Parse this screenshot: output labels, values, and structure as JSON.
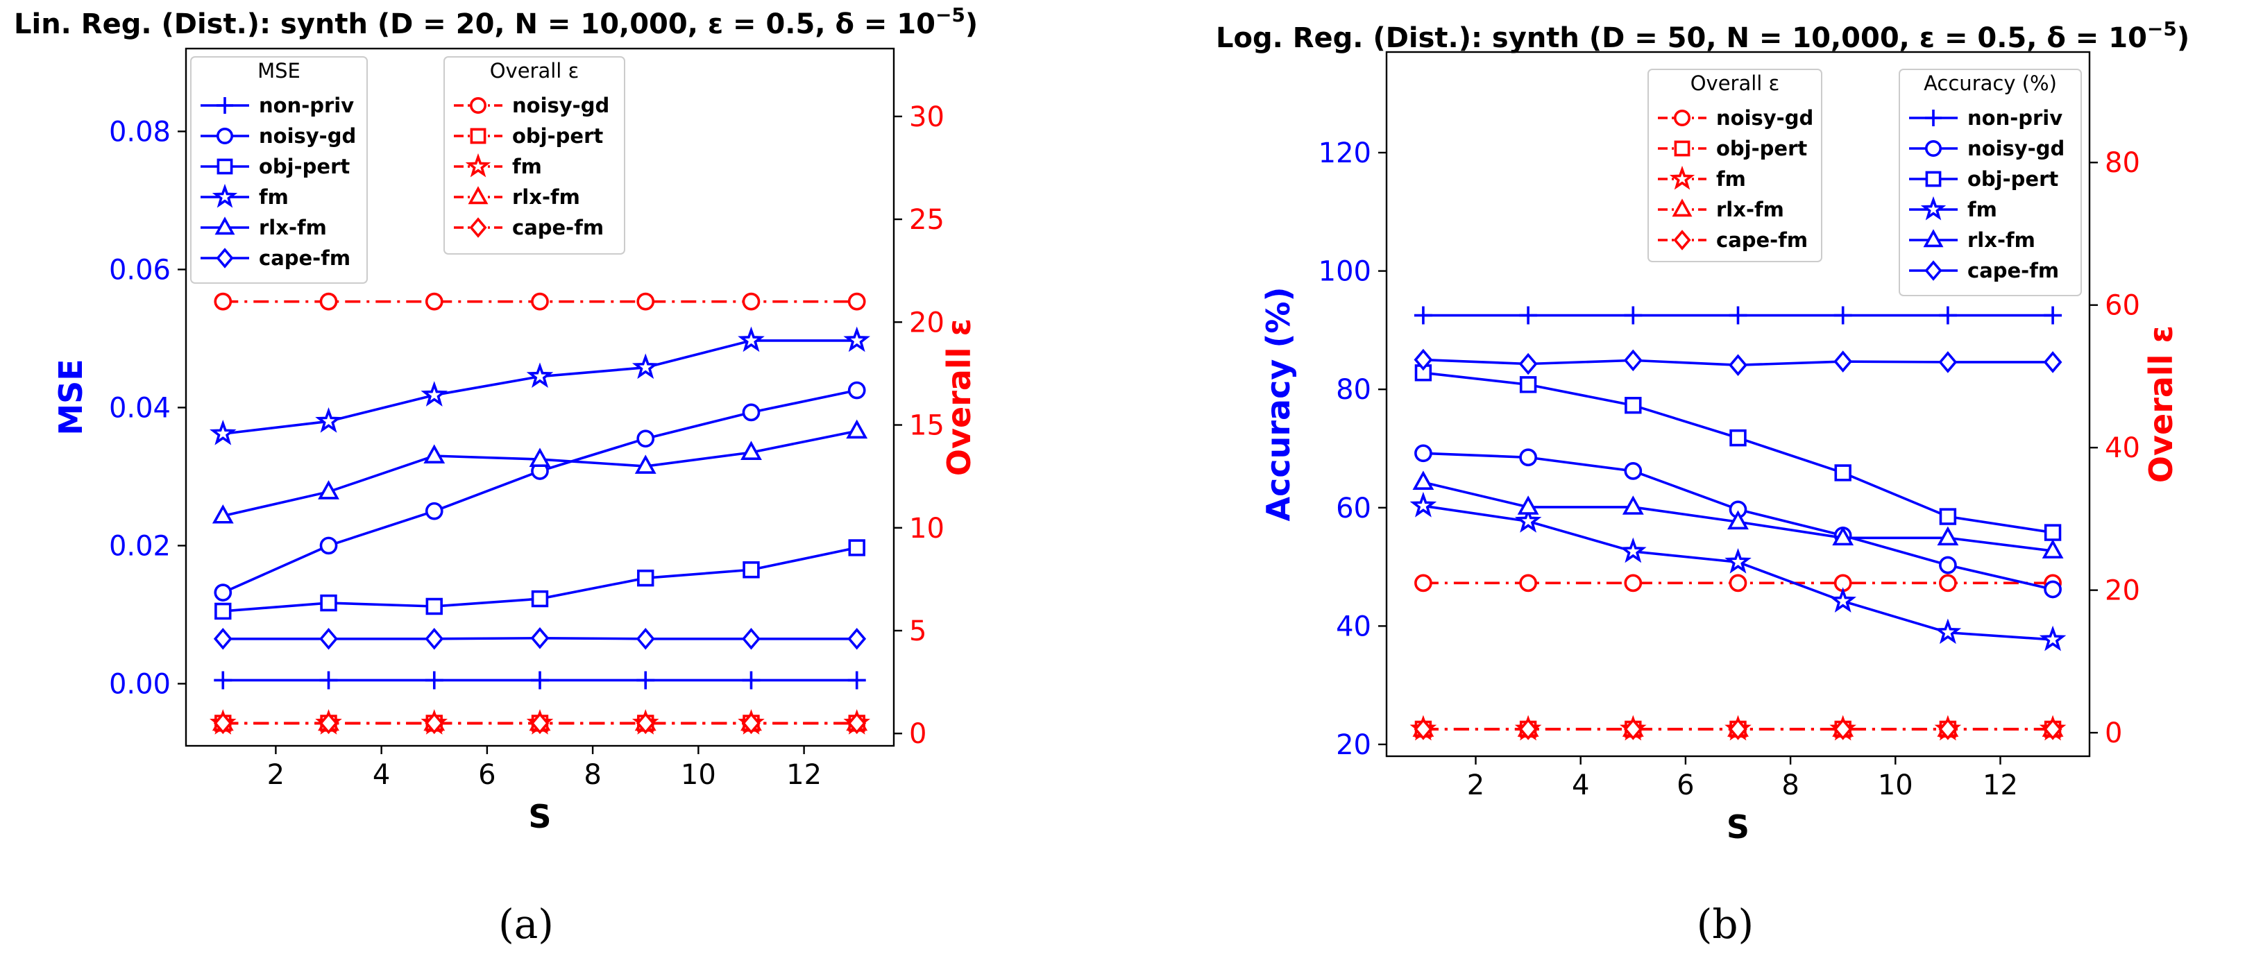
{
  "chart_data": [
    {
      "type": "line",
      "title": "Lin. Reg. (Dist.): synth (D = 20, N = 10,000, ε = 0.5, δ = 10",
      "title_sup": "−5",
      "title_end": ")",
      "caption": "(a)",
      "xlabel": "S",
      "ylabel_left": "MSE",
      "ylabel_right": "Overall ε",
      "x": [
        1,
        3,
        5,
        7,
        9,
        11,
        13
      ],
      "xlim": [
        0.3,
        13.7
      ],
      "ylim_left": [
        -0.009,
        0.092
      ],
      "ylim_right": [
        -0.6,
        33.3
      ],
      "xticks": [
        "2",
        "4",
        "6",
        "8",
        "10",
        "12"
      ],
      "yticks_left": [
        "0.00",
        "0.02",
        "0.04",
        "0.06",
        "0.08"
      ],
      "yticks_right": [
        "0",
        "5",
        "10",
        "15",
        "20",
        "25",
        "30"
      ],
      "left_legend_title": "MSE",
      "right_legend_title": "Overall ε",
      "left_series": [
        {
          "name": "non-priv",
          "marker": "plus",
          "values": [
            0.0005,
            0.0005,
            0.0005,
            0.0005,
            0.0005,
            0.0005,
            0.0005
          ]
        },
        {
          "name": "noisy-gd",
          "marker": "circle",
          "values": [
            0.0132,
            0.02,
            0.025,
            0.0308,
            0.0355,
            0.0393,
            0.0425
          ]
        },
        {
          "name": "obj-pert",
          "marker": "square",
          "values": [
            0.0105,
            0.0117,
            0.0112,
            0.0123,
            0.0153,
            0.0165,
            0.0197
          ]
        },
        {
          "name": "fm",
          "marker": "star",
          "values": [
            0.0362,
            0.038,
            0.0418,
            0.0445,
            0.0458,
            0.0497,
            0.0497
          ]
        },
        {
          "name": "rlx-fm",
          "marker": "triangle",
          "values": [
            0.0243,
            0.0278,
            0.033,
            0.0325,
            0.0315,
            0.0335,
            0.0366
          ]
        },
        {
          "name": "cape-fm",
          "marker": "diamond",
          "values": [
            0.0065,
            0.0065,
            0.0065,
            0.0066,
            0.0065,
            0.0065,
            0.0065
          ]
        }
      ],
      "right_series": [
        {
          "name": "noisy-gd",
          "marker": "circle",
          "values": [
            21,
            21,
            21,
            21,
            21,
            21,
            21
          ]
        },
        {
          "name": "obj-pert",
          "marker": "square",
          "values": [
            0.5,
            0.5,
            0.5,
            0.5,
            0.5,
            0.5,
            0.5
          ]
        },
        {
          "name": "fm",
          "marker": "star",
          "values": [
            0.5,
            0.5,
            0.5,
            0.5,
            0.5,
            0.5,
            0.5
          ]
        },
        {
          "name": "rlx-fm",
          "marker": "triangle",
          "values": [
            0.5,
            0.5,
            0.5,
            0.5,
            0.5,
            0.5,
            0.5
          ]
        },
        {
          "name": "cape-fm",
          "marker": "diamond",
          "values": [
            0.5,
            0.5,
            0.5,
            0.5,
            0.5,
            0.5,
            0.5
          ]
        }
      ]
    },
    {
      "type": "line",
      "title": "Log. Reg. (Dist.): synth (D = 50, N = 10,000, ε = 0.5, δ = 10",
      "title_sup": "−5",
      "title_end": ")",
      "caption": "(b)",
      "xlabel": "S",
      "ylabel_left": "Accuracy (%)",
      "ylabel_right": "Overall ε",
      "x": [
        1,
        3,
        5,
        7,
        9,
        11,
        13
      ],
      "xlim": [
        0.3,
        13.7
      ],
      "ylim_left": [
        18,
        137
      ],
      "ylim_right": [
        -3.3,
        95.5
      ],
      "xticks": [
        "2",
        "4",
        "6",
        "8",
        "10",
        "12"
      ],
      "yticks_left": [
        "20",
        "40",
        "60",
        "80",
        "100",
        "120"
      ],
      "yticks_right": [
        "0",
        "20",
        "40",
        "60",
        "80"
      ],
      "left_legend_title": "Accuracy (%)",
      "right_legend_title": "Overall ε",
      "left_series": [
        {
          "name": "non-priv",
          "marker": "plus",
          "values": [
            92.5,
            92.5,
            92.5,
            92.5,
            92.5,
            92.5,
            92.5
          ]
        },
        {
          "name": "noisy-gd",
          "marker": "circle",
          "values": [
            69.2,
            68.5,
            66.2,
            59.7,
            55.3,
            50.3,
            46.2
          ]
        },
        {
          "name": "obj-pert",
          "marker": "square",
          "values": [
            82.8,
            80.8,
            77.3,
            71.8,
            65.9,
            58.5,
            55.8
          ]
        },
        {
          "name": "fm",
          "marker": "star",
          "values": [
            60.3,
            57.7,
            52.6,
            50.8,
            44.2,
            38.9,
            37.7
          ]
        },
        {
          "name": "rlx-fm",
          "marker": "triangle",
          "values": [
            64.3,
            60.1,
            60.1,
            57.6,
            54.9,
            54.9,
            52.7
          ]
        },
        {
          "name": "cape-fm",
          "marker": "diamond",
          "values": [
            85.0,
            84.3,
            84.9,
            84.1,
            84.7,
            84.6,
            84.6
          ]
        }
      ],
      "right_series": [
        {
          "name": "noisy-gd",
          "marker": "circle",
          "values": [
            21,
            21,
            21,
            21,
            21,
            21,
            21
          ]
        },
        {
          "name": "obj-pert",
          "marker": "square",
          "values": [
            0.5,
            0.5,
            0.5,
            0.5,
            0.5,
            0.5,
            0.5
          ]
        },
        {
          "name": "fm",
          "marker": "star",
          "values": [
            0.5,
            0.5,
            0.5,
            0.5,
            0.5,
            0.5,
            0.5
          ]
        },
        {
          "name": "rlx-fm",
          "marker": "triangle",
          "values": [
            0.5,
            0.5,
            0.5,
            0.5,
            0.5,
            0.5,
            0.5
          ]
        },
        {
          "name": "cape-fm",
          "marker": "diamond",
          "values": [
            0.5,
            0.5,
            0.5,
            0.5,
            0.5,
            0.5,
            0.5
          ]
        }
      ]
    }
  ],
  "colors": {
    "left_axis": "#0000ff",
    "right_axis": "#ff0000",
    "text": "#000000"
  }
}
